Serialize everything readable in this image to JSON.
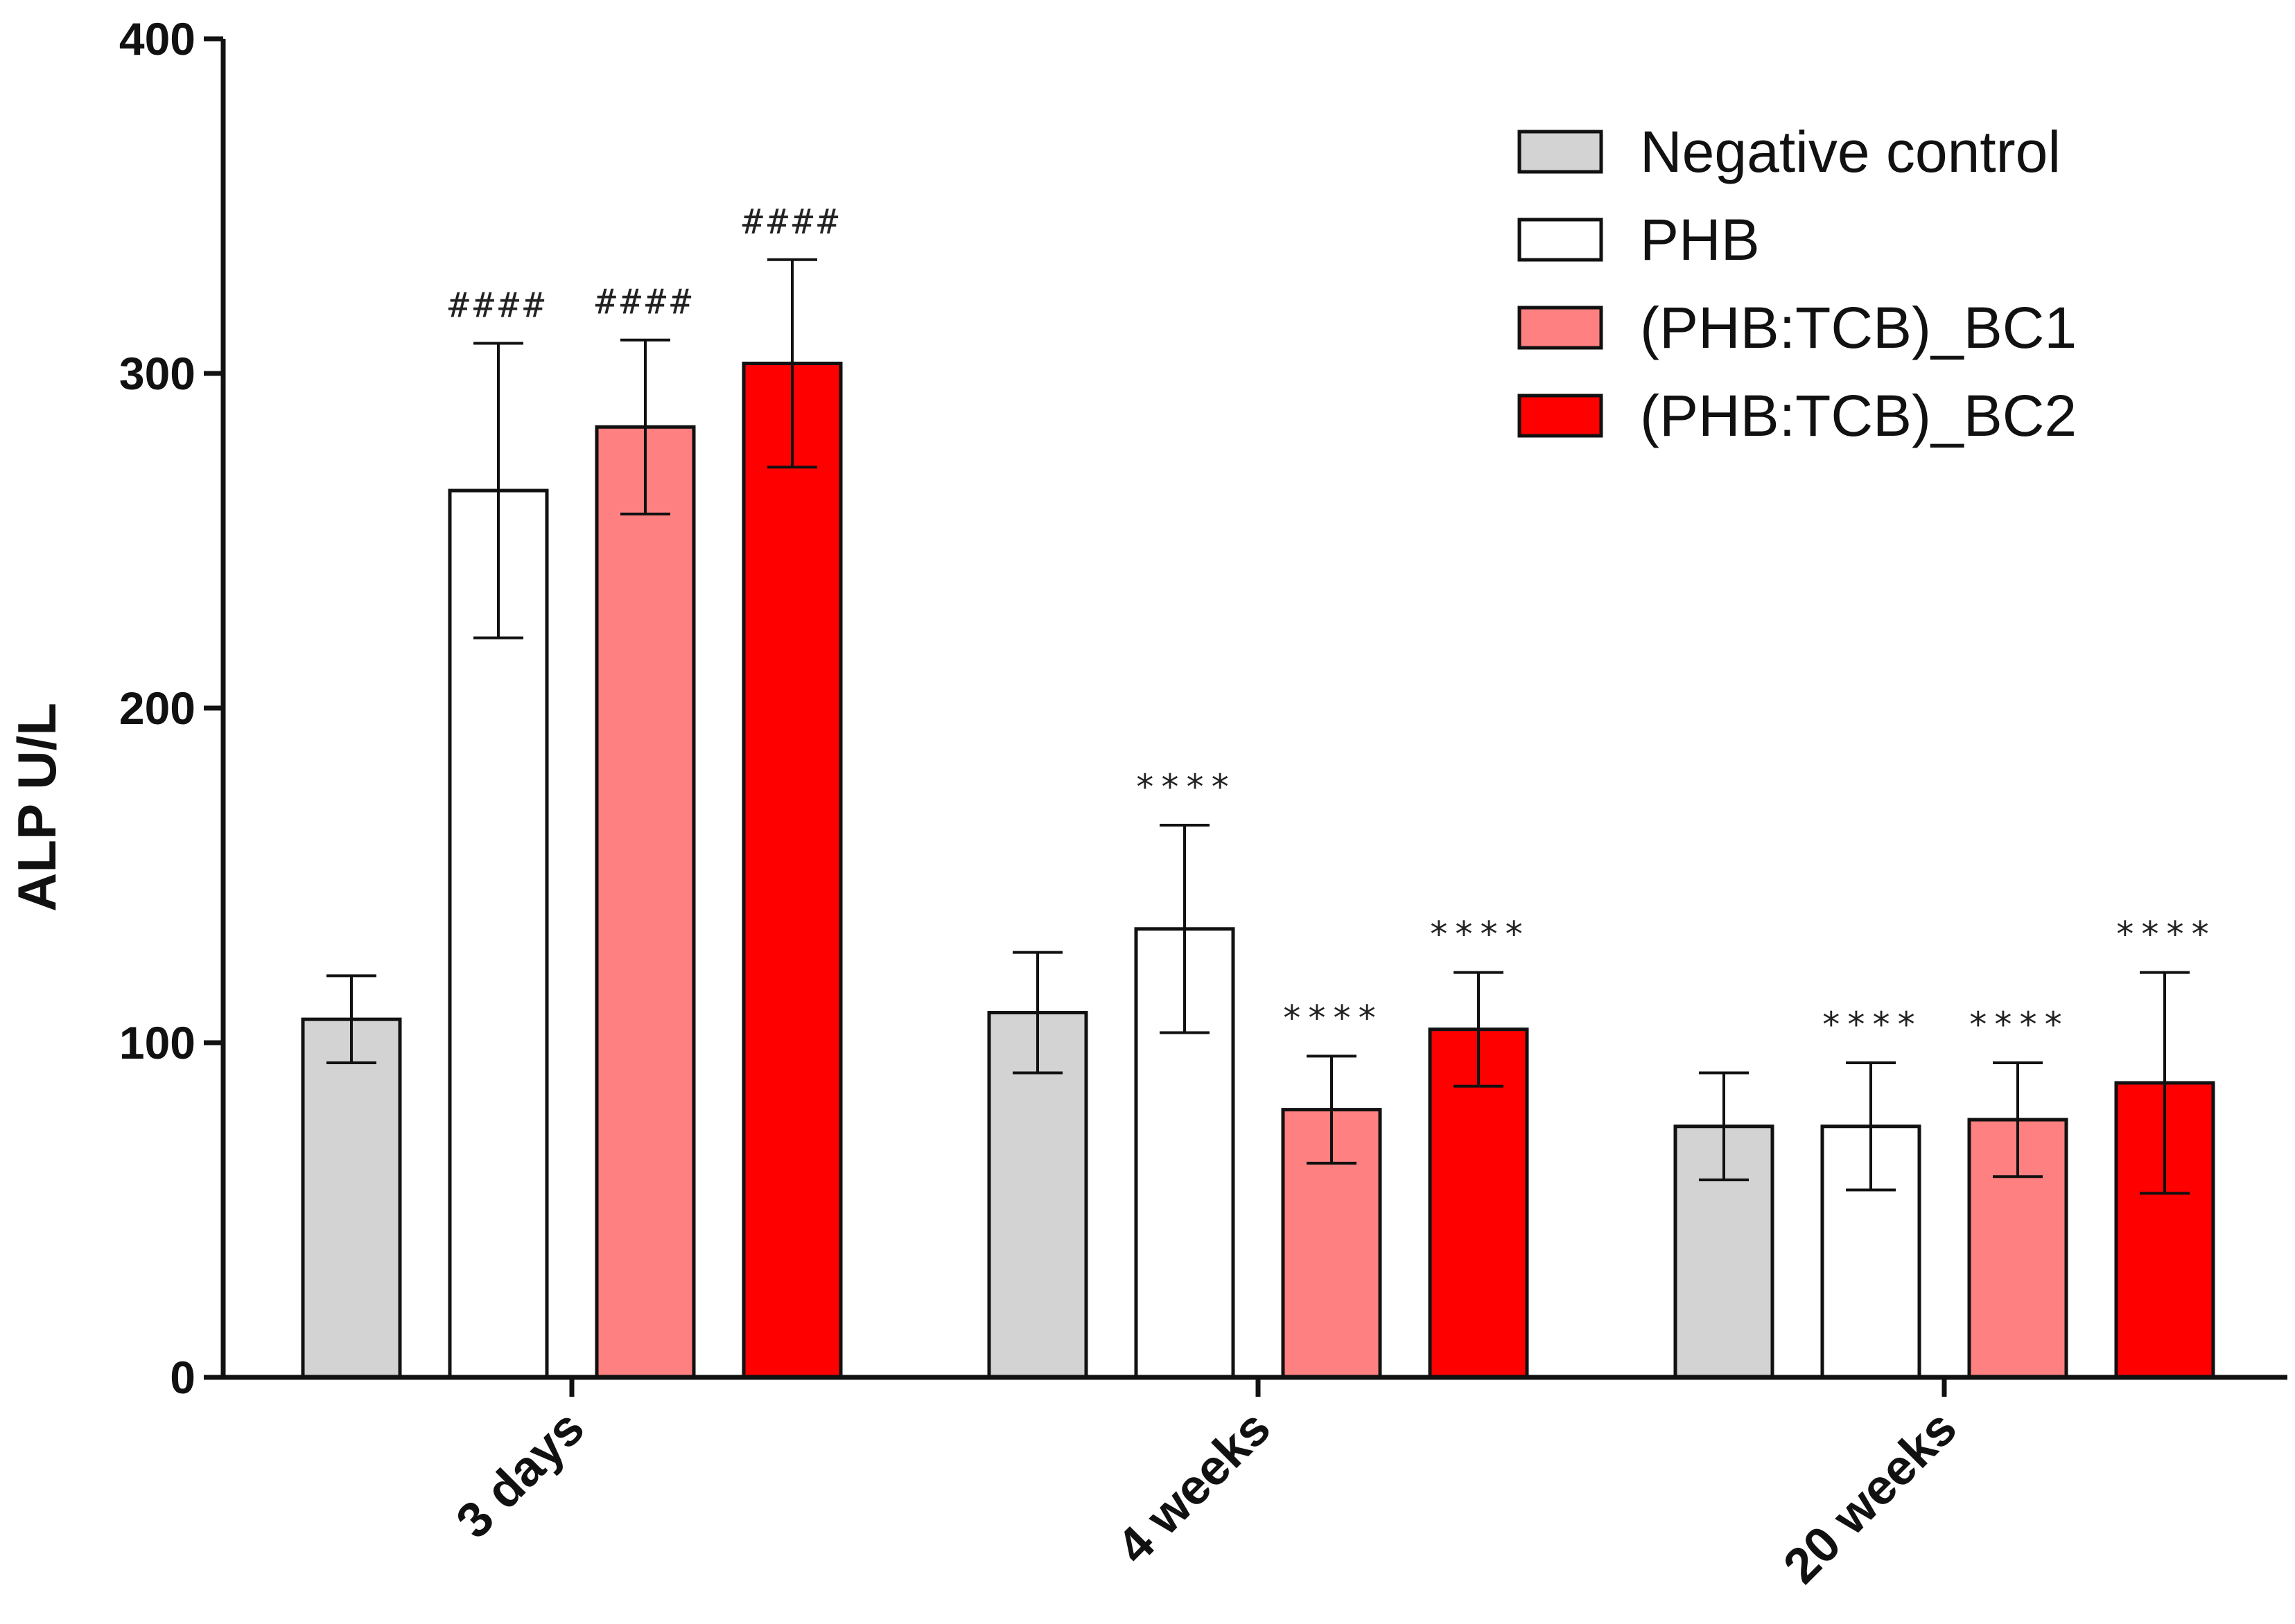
{
  "chart_data": {
    "type": "bar",
    "title": "",
    "xlabel": "",
    "ylabel": "ALP   U/L",
    "ylim": [
      0,
      400
    ],
    "yticks": [
      0,
      100,
      200,
      300,
      400
    ],
    "categories": [
      "3 days",
      "4 weeks",
      "20 weeks"
    ],
    "series": [
      {
        "name": "Negative control",
        "color": "#d3d3d3",
        "values": [
          107,
          109,
          75
        ],
        "errors": [
          13,
          18,
          16
        ],
        "annotations": [
          "",
          "",
          ""
        ]
      },
      {
        "name": "PHB",
        "color": "#ffffff",
        "values": [
          265,
          134,
          75
        ],
        "errors": [
          44,
          31,
          19
        ],
        "annotations": [
          "####",
          "****",
          "****"
        ]
      },
      {
        "name": "(PHB:TCB)_BC1",
        "color": "#ff8080",
        "values": [
          284,
          80,
          77
        ],
        "errors": [
          26,
          16,
          17
        ],
        "annotations": [
          "####",
          "****",
          "****"
        ]
      },
      {
        "name": "(PHB:TCB)_BC2",
        "color": "#ff0000",
        "values": [
          303,
          104,
          88
        ],
        "errors": [
          31,
          17,
          33
        ],
        "annotations": [
          "####",
          "****",
          "****"
        ]
      }
    ],
    "grid": false,
    "legend_position": "top-right"
  }
}
